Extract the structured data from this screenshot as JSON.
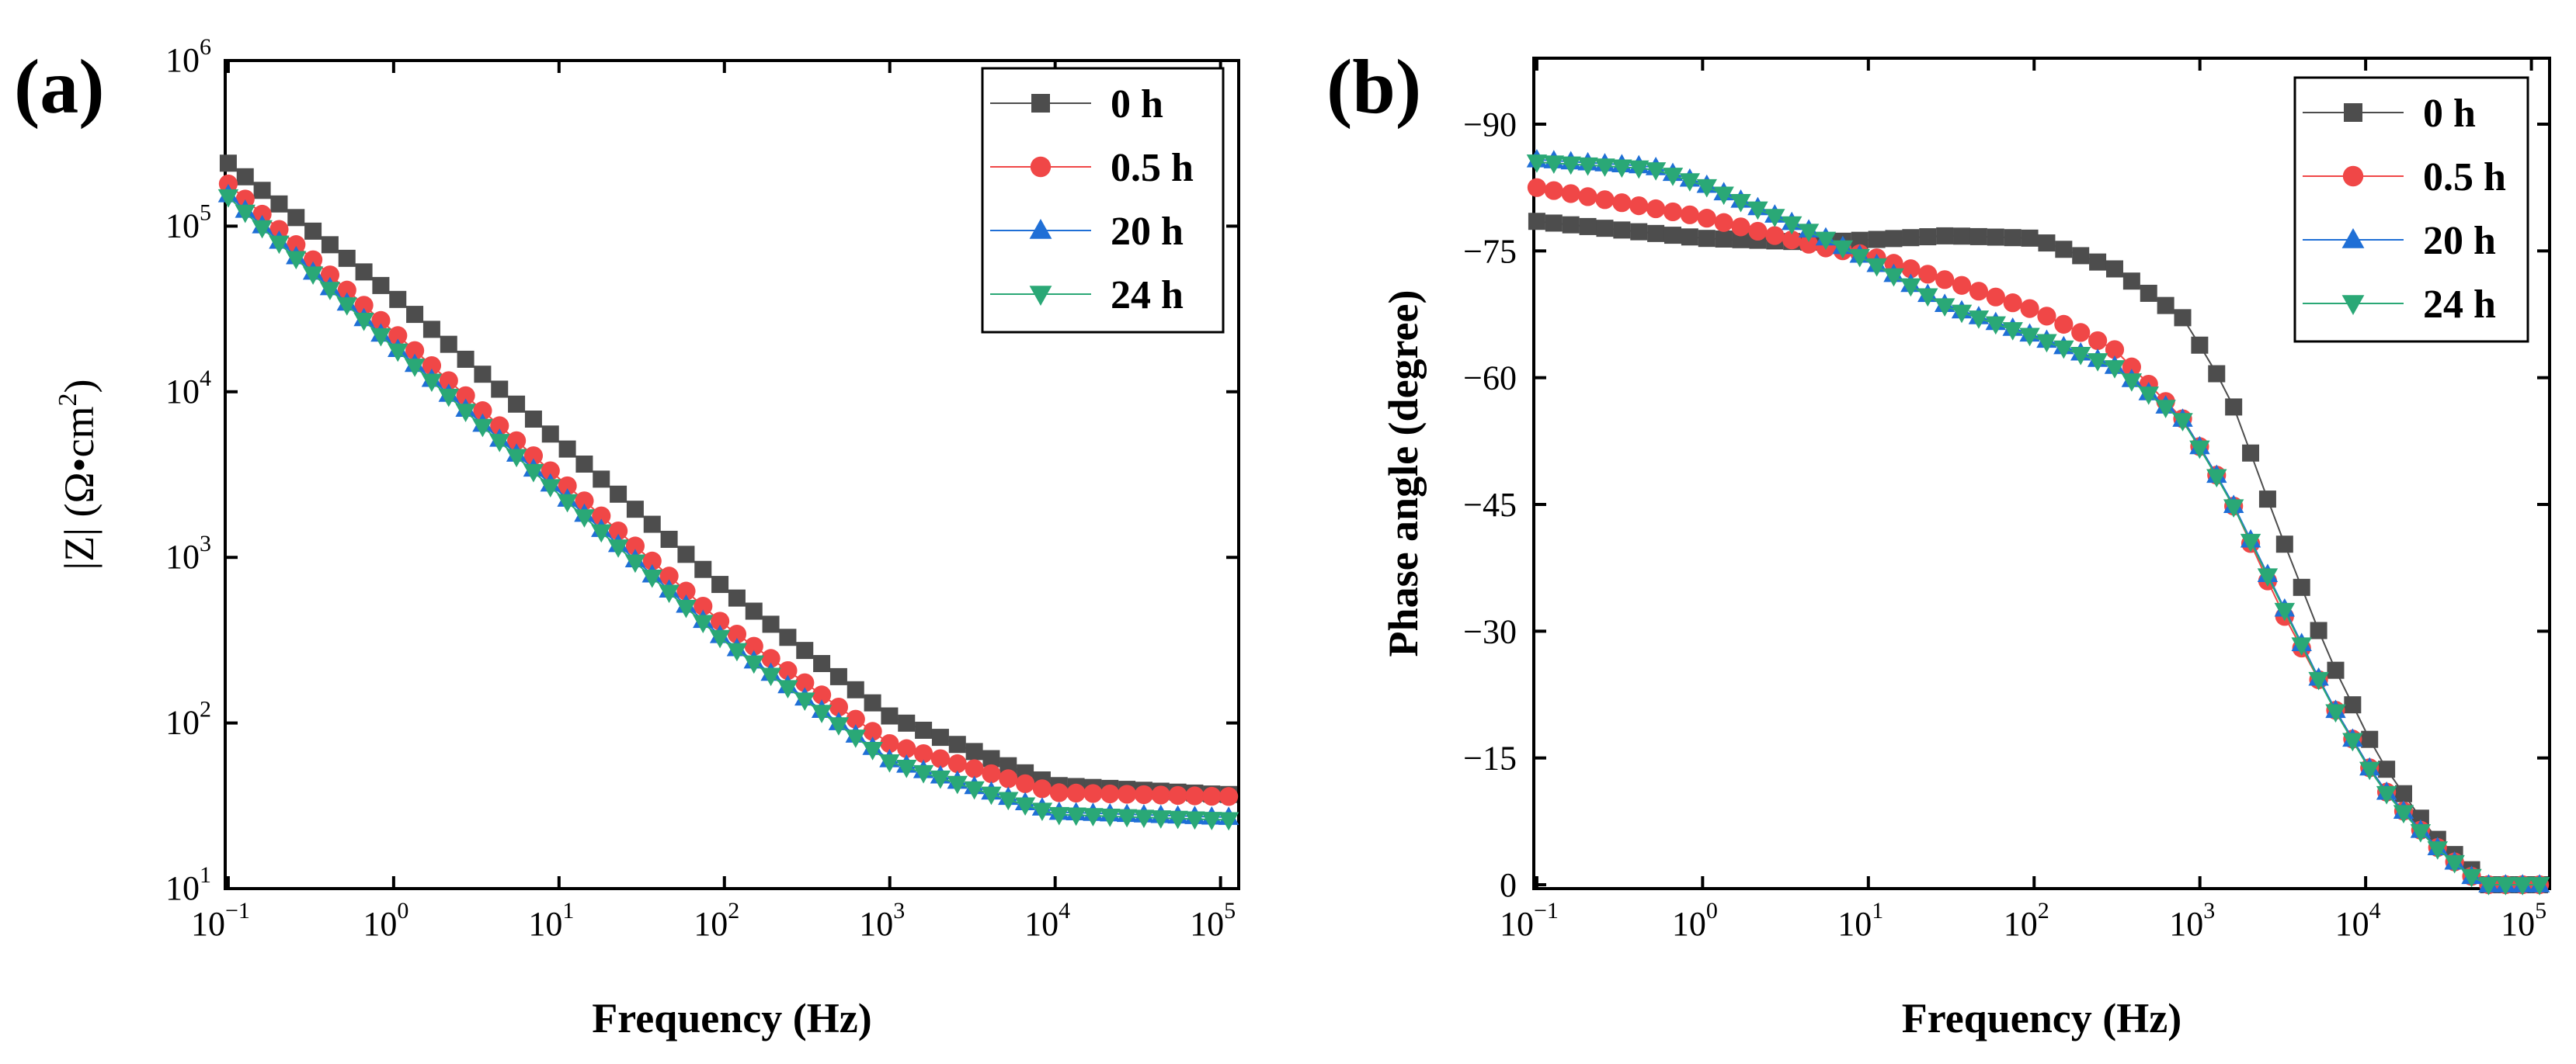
{
  "chart_data": [
    {
      "type": "scatter",
      "panel_label": "(a)",
      "xlabel": "Frequency (Hz)",
      "ylabel_parts": [
        "|Z| (Ω•cm",
        "2",
        ")"
      ],
      "xscale": "log",
      "yscale": "log",
      "xlim": [
        0.1,
        100000
      ],
      "ylim": [
        10,
        1000000
      ],
      "xticks": [
        {
          "value": 0.1,
          "base": "10",
          "exp": "−1"
        },
        {
          "value": 1,
          "base": "10",
          "exp": "0"
        },
        {
          "value": 10,
          "base": "10",
          "exp": "1"
        },
        {
          "value": 100,
          "base": "10",
          "exp": "2"
        },
        {
          "value": 1000,
          "base": "10",
          "exp": "3"
        },
        {
          "value": 10000,
          "base": "10",
          "exp": "4"
        },
        {
          "value": 100000,
          "base": "10",
          "exp": "5"
        }
      ],
      "yticks": [
        {
          "value": 10,
          "base": "10",
          "exp": "1"
        },
        {
          "value": 100,
          "base": "10",
          "exp": "2"
        },
        {
          "value": 1000,
          "base": "10",
          "exp": "3"
        },
        {
          "value": 10000,
          "base": "10",
          "exp": "4"
        },
        {
          "value": 100000,
          "base": "10",
          "exp": "5"
        },
        {
          "value": 1000000,
          "base": "10",
          "exp": "6"
        }
      ],
      "legend_position": "top-right",
      "series": [
        {
          "name": "0 h",
          "marker": "square",
          "color": "#4d4d4d",
          "points": [
            [
              0.1,
              240000
            ],
            [
              1,
              38000
            ],
            [
              10,
              5000
            ],
            [
              100,
              650
            ],
            [
              1000,
              110
            ],
            [
              10000,
              42
            ],
            [
              100000,
              37
            ]
          ]
        },
        {
          "name": "0.5 h",
          "marker": "circle",
          "color": "#f04747",
          "points": [
            [
              0.1,
              180000
            ],
            [
              1,
              23000
            ],
            [
              10,
              3000
            ],
            [
              100,
              390
            ],
            [
              1000,
              75
            ],
            [
              10000,
              38
            ],
            [
              100000,
              36
            ]
          ]
        },
        {
          "name": "20 h",
          "marker": "triangle-up",
          "color": "#1f6fd6",
          "points": [
            [
              0.1,
              155000
            ],
            [
              1,
              19000
            ],
            [
              10,
              2500
            ],
            [
              100,
              320
            ],
            [
              1000,
              60
            ],
            [
              10000,
              29
            ],
            [
              100000,
              27
            ]
          ]
        },
        {
          "name": "24 h",
          "marker": "triangle-down",
          "color": "#2aa876",
          "points": [
            [
              0.1,
              150000
            ],
            [
              1,
              18500
            ],
            [
              10,
              2400
            ],
            [
              100,
              310
            ],
            [
              1000,
              58
            ],
            [
              10000,
              28
            ],
            [
              100000,
              26
            ]
          ]
        }
      ]
    },
    {
      "type": "scatter",
      "panel_label": "(b)",
      "xlabel": "Frequency (Hz)",
      "ylabel": "Phase angle (degree)",
      "xscale": "log",
      "xlim": [
        0.1,
        100000
      ],
      "ylim": [
        0,
        -90
      ],
      "xticks": [
        {
          "value": 0.1,
          "base": "10",
          "exp": "−1"
        },
        {
          "value": 1,
          "base": "10",
          "exp": "0"
        },
        {
          "value": 10,
          "base": "10",
          "exp": "1"
        },
        {
          "value": 100,
          "base": "10",
          "exp": "2"
        },
        {
          "value": 1000,
          "base": "10",
          "exp": "3"
        },
        {
          "value": 10000,
          "base": "10",
          "exp": "4"
        },
        {
          "value": 100000,
          "base": "10",
          "exp": "5"
        }
      ],
      "yticks": [
        {
          "value": 0,
          "label": "0"
        },
        {
          "value": -15,
          "label": "−15"
        },
        {
          "value": -30,
          "label": "−30"
        },
        {
          "value": -45,
          "label": "−45"
        },
        {
          "value": -60,
          "label": "−60"
        },
        {
          "value": -75,
          "label": "−75"
        },
        {
          "value": -90,
          "label": "−90"
        }
      ],
      "legend_position": "top-right",
      "series": [
        {
          "name": "0 h",
          "marker": "square",
          "color": "#4d4d4d",
          "points": [
            [
              0.1,
              -78.5
            ],
            [
              1,
              -76.5
            ],
            [
              5,
              -76
            ],
            [
              30,
              -76.8
            ],
            [
              100,
              -76.5
            ],
            [
              300,
              -73
            ],
            [
              800,
              -67
            ],
            [
              1500,
              -58
            ],
            [
              3000,
              -42
            ],
            [
              6000,
              -27
            ],
            [
              12000,
              -15
            ],
            [
              25000,
              -6
            ],
            [
              55000,
              0
            ]
          ]
        },
        {
          "name": "0.5 h",
          "marker": "circle",
          "color": "#f04747",
          "points": [
            [
              0.1,
              -82.5
            ],
            [
              1,
              -79
            ],
            [
              5,
              -75.5
            ],
            [
              10,
              -74.5
            ],
            [
              30,
              -71.5
            ],
            [
              100,
              -68
            ],
            [
              300,
              -63.5
            ],
            [
              800,
              -55
            ],
            [
              1500,
              -46
            ],
            [
              3000,
              -33
            ],
            [
              6000,
              -22
            ],
            [
              12000,
              -12
            ],
            [
              25000,
              -5
            ],
            [
              50000,
              0
            ]
          ]
        },
        {
          "name": "20 h",
          "marker": "triangle-up",
          "color": "#1f6fd6",
          "points": [
            [
              0.1,
              -85.8
            ],
            [
              0.5,
              -85
            ],
            [
              1,
              -83
            ],
            [
              5,
              -77
            ],
            [
              10,
              -74
            ],
            [
              30,
              -68.5
            ],
            [
              100,
              -65
            ],
            [
              300,
              -61.5
            ],
            [
              800,
              -55
            ],
            [
              1500,
              -46
            ],
            [
              3000,
              -34
            ],
            [
              6000,
              -22
            ],
            [
              12000,
              -12
            ],
            [
              25000,
              -5
            ],
            [
              50000,
              0
            ]
          ]
        },
        {
          "name": "24 h",
          "marker": "triangle-down",
          "color": "#2aa876",
          "points": [
            [
              0.1,
              -85.5
            ],
            [
              0.5,
              -84.7
            ],
            [
              1,
              -82.8
            ],
            [
              5,
              -76.8
            ],
            [
              10,
              -73.8
            ],
            [
              30,
              -68.3
            ],
            [
              100,
              -64.8
            ],
            [
              300,
              -61.3
            ],
            [
              800,
              -54.8
            ],
            [
              1500,
              -45.8
            ],
            [
              3000,
              -33.8
            ],
            [
              6000,
              -21.8
            ],
            [
              12000,
              -11.8
            ],
            [
              25000,
              -4.8
            ],
            [
              50000,
              0
            ]
          ]
        }
      ]
    }
  ]
}
